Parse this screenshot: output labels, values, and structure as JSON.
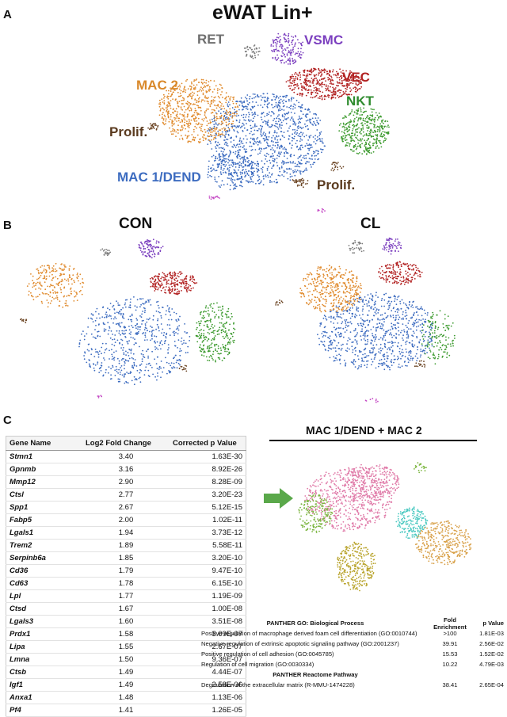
{
  "panel_a": {
    "letter": "A",
    "title": "eWAT Lin+",
    "labels": {
      "ret": "RET",
      "vsmc": "VSMC",
      "vec": "VEC",
      "mac2": "MAC 2",
      "nkt": "NKT",
      "prolif_left": "Prolif.",
      "mac1": "MAC  1/DEND",
      "prolif_right": "Prolif."
    }
  },
  "panel_b": {
    "letter": "B",
    "left_title": "CON",
    "right_title": "CL"
  },
  "panel_c": {
    "letter": "C",
    "plot_title": "MAC 1/DEND + MAC 2",
    "table": {
      "headers": [
        "Gene Name",
        "Log2 Fold Change",
        "Corrected p Value"
      ],
      "rows": [
        [
          "Stmn1",
          "3.40",
          "1.63E-30"
        ],
        [
          "Gpnmb",
          "3.16",
          "8.92E-26"
        ],
        [
          "Mmp12",
          "2.90",
          "8.28E-09"
        ],
        [
          "Ctsl",
          "2.77",
          "3.20E-23"
        ],
        [
          "Spp1",
          "2.67",
          "5.12E-15"
        ],
        [
          "Fabp5",
          "2.00",
          "1.02E-11"
        ],
        [
          "Lgals1",
          "1.94",
          "3.73E-12"
        ],
        [
          "Trem2",
          "1.89",
          "5.58E-11"
        ],
        [
          "Serpinb6a",
          "1.85",
          "3.20E-10"
        ],
        [
          "Cd36",
          "1.79",
          "9.47E-10"
        ],
        [
          "Cd63",
          "1.78",
          "6.15E-10"
        ],
        [
          "Lpl",
          "1.77",
          "1.19E-09"
        ],
        [
          "Ctsd",
          "1.67",
          "1.00E-08"
        ],
        [
          "Lgals3",
          "1.60",
          "3.51E-08"
        ],
        [
          "Prdx1",
          "1.58",
          "3.09E-07"
        ],
        [
          "Lipa",
          "1.55",
          "2.67E-07"
        ],
        [
          "Lmna",
          "1.50",
          "9.36E-07"
        ],
        [
          "Ctsb",
          "1.49",
          "4.44E-07"
        ],
        [
          "Igf1",
          "1.49",
          "2.58E-06"
        ],
        [
          "Anxa1",
          "1.48",
          "1.13E-06"
        ],
        [
          "Pf4",
          "1.41",
          "1.26E-05"
        ]
      ]
    },
    "panther": {
      "go_header": "PANTHER GO: Biological Process",
      "fe_header": "Fold Enrichment",
      "pv_header": "p Value",
      "go_rows": [
        [
          "Positive regulation of macrophage derived foam cell differentiation (GO:0010744)",
          ">100",
          "1.81E-03"
        ],
        [
          "Negative regulation of extrinsic apoptotic signaling pathway (GO:2001237)",
          "39.91",
          "2.56E-02"
        ],
        [
          "Positive regulation of cell adhesion (GO:0045785)",
          "15.53",
          "1.52E-02"
        ],
        [
          "Regulation of cell migration (GO:0030334)",
          "10.22",
          "4.79E-03"
        ]
      ],
      "reactome_header": "PANTHER Reactome Pathway",
      "reactome_rows": [
        [
          "Degradation of the extracellular matrix (R-MMU-1474228)",
          "38.41",
          "2.65E-04"
        ]
      ]
    }
  },
  "colors": {
    "mac1": "#3d6cc0",
    "mac2": "#e08a2c",
    "nkt": "#3c9a2e",
    "vec": "#b22222",
    "vsmc": "#7b3fbf",
    "ret": "#7a7a7a",
    "prolif": "#6b4423",
    "misc": "#c54ac5",
    "c_pink": "#e07aa8",
    "c_orange": "#d8a048",
    "c_olive": "#b8a32a",
    "c_cyan": "#48c8c0",
    "c_green": "#7cb640",
    "arrow": "#5aa84a"
  }
}
